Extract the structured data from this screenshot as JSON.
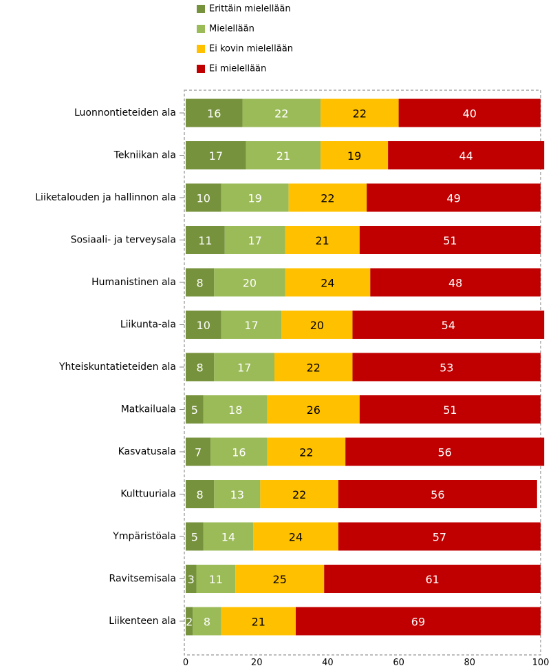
{
  "chart_data": {
    "type": "bar",
    "orientation": "horizontal",
    "stacked": true,
    "categories": [
      "Luonnontieteiden ala",
      "Tekniikan ala",
      "Liiketalouden ja hallinnon ala",
      "Sosiaali- ja terveysala",
      "Humanistinen ala",
      "Liikunta-ala",
      "Yhteiskuntatieteiden ala",
      "Matkailuala",
      "Kasvatusala",
      "Kulttuuriala",
      "Ympäristöala",
      "Ravitsemisala",
      "Liikenteen ala"
    ],
    "series": [
      {
        "name": "Erittäin mielellään",
        "color": "#76923c",
        "label_color": "#ffffff",
        "values": [
          16,
          17,
          10,
          11,
          8,
          10,
          8,
          5,
          7,
          8,
          5,
          3,
          2
        ]
      },
      {
        "name": "Mielellään",
        "color": "#9bbb59",
        "label_color": "#ffffff",
        "values": [
          22,
          21,
          19,
          17,
          20,
          17,
          17,
          18,
          16,
          13,
          14,
          11,
          8
        ]
      },
      {
        "name": "Ei kovin mielellään",
        "color": "#ffc000",
        "label_color": "#000000",
        "values": [
          22,
          19,
          22,
          21,
          24,
          20,
          22,
          26,
          22,
          22,
          24,
          25,
          21
        ]
      },
      {
        "name": "Ei mielellään",
        "color": "#c00000",
        "label_color": "#ffffff",
        "values": [
          40,
          44,
          49,
          51,
          48,
          54,
          53,
          51,
          56,
          56,
          57,
          61,
          69
        ]
      }
    ],
    "xlim": [
      0,
      100
    ],
    "xticks": [
      0,
      20,
      40,
      60,
      80,
      100
    ],
    "title": "",
    "xlabel": "",
    "ylabel": "",
    "legend_position": "top",
    "grid": false
  }
}
